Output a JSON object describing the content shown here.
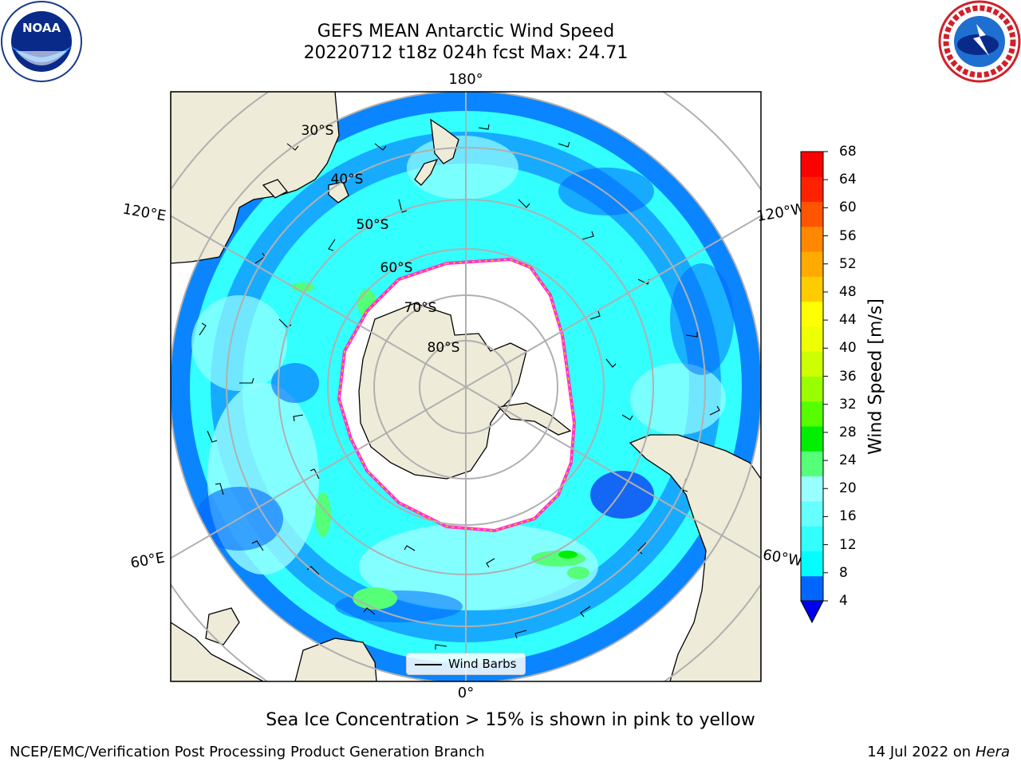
{
  "title": {
    "line1": "GEFS MEAN Antarctic Wind Speed",
    "line2": "20220712 t18z 024h fcst   Max: 24.71"
  },
  "logos": {
    "left": "noaa-logo",
    "right": "nws-logo"
  },
  "map": {
    "projection": "south-polar-stereographic",
    "lon_labels": {
      "top": "180°",
      "bottom": "0°",
      "upper_left": "120°E",
      "upper_right": "120°W",
      "lower_left": "60°E",
      "lower_right": "60°W"
    },
    "lat_labels": [
      "30°S",
      "40°S",
      "50°S",
      "60°S",
      "70°S",
      "80°S"
    ],
    "colors": {
      "land": "#eeebd8",
      "sea_ice": "#ffffff",
      "ice_edge": "#ff33cc",
      "gridlines": "#b0b0b0"
    },
    "legend": "Wind Barbs"
  },
  "colorbar": {
    "label": "Wind Speed [m/s]",
    "ticks": [
      "4",
      "8",
      "12",
      "16",
      "20",
      "24",
      "28",
      "32",
      "36",
      "40",
      "44",
      "48",
      "52",
      "56",
      "60",
      "64",
      "68"
    ],
    "level_values": [
      4,
      8,
      12,
      16,
      20,
      24,
      28,
      32,
      36,
      40,
      44,
      48,
      52,
      56,
      60,
      64,
      68
    ],
    "colors": [
      "#0066ff",
      "#00ffff",
      "#33ffff",
      "#66ffff",
      "#99ffff",
      "#55ff77",
      "#00ee00",
      "#55ff00",
      "#99ff00",
      "#ccff00",
      "#eeff00",
      "#ffff00",
      "#ffcc00",
      "#ffaa00",
      "#ff8800",
      "#ff5500",
      "#ff2200",
      "#ff0000"
    ],
    "under_color": "#0000ee"
  },
  "caption": "Sea Ice Concentration > 15% is shown in pink to yellow",
  "footer": {
    "left": "NCEP/EMC/Verification Post Processing Product Generation Branch",
    "right_date": "14 Jul 2022 on",
    "right_host": "Hera"
  }
}
